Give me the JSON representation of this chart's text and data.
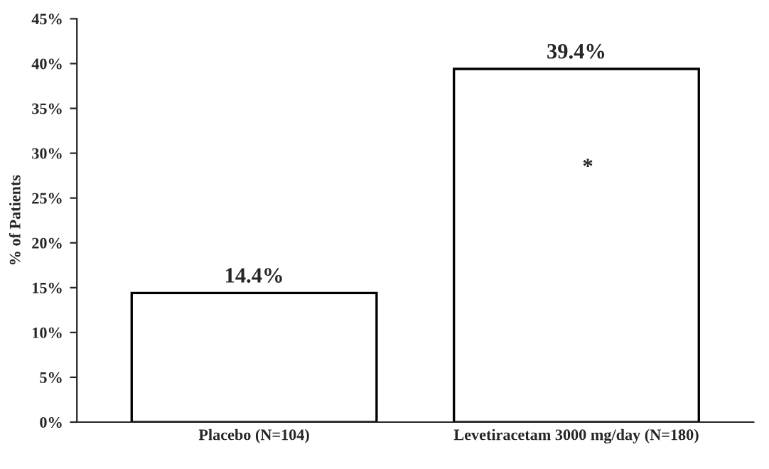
{
  "chart_data": {
    "type": "bar",
    "ylabel": "% of Patients",
    "categories": [
      "Placebo (N=104)",
      "Levetiracetam 3000 mg/day (N=180)"
    ],
    "series": [
      {
        "color": "#ffffff",
        "values": [
          14.4,
          39.4
        ]
      }
    ],
    "value_labels": [
      "14.4%",
      "39.4%"
    ],
    "ylim": [
      0,
      45
    ],
    "yticks": [
      {
        "value": 0,
        "label": "0%"
      },
      {
        "value": 5,
        "label": "5%"
      },
      {
        "value": 10,
        "label": "10%"
      },
      {
        "value": 15,
        "label": "15%"
      },
      {
        "value": 20,
        "label": "20%"
      },
      {
        "value": 25,
        "label": "25%"
      },
      {
        "value": 30,
        "label": "30%"
      },
      {
        "value": 35,
        "label": "35%"
      },
      {
        "value": 40,
        "label": "40%"
      },
      {
        "value": 45,
        "label": "45%"
      }
    ],
    "annotations": [
      "*"
    ],
    "grid": false,
    "legend": false
  }
}
